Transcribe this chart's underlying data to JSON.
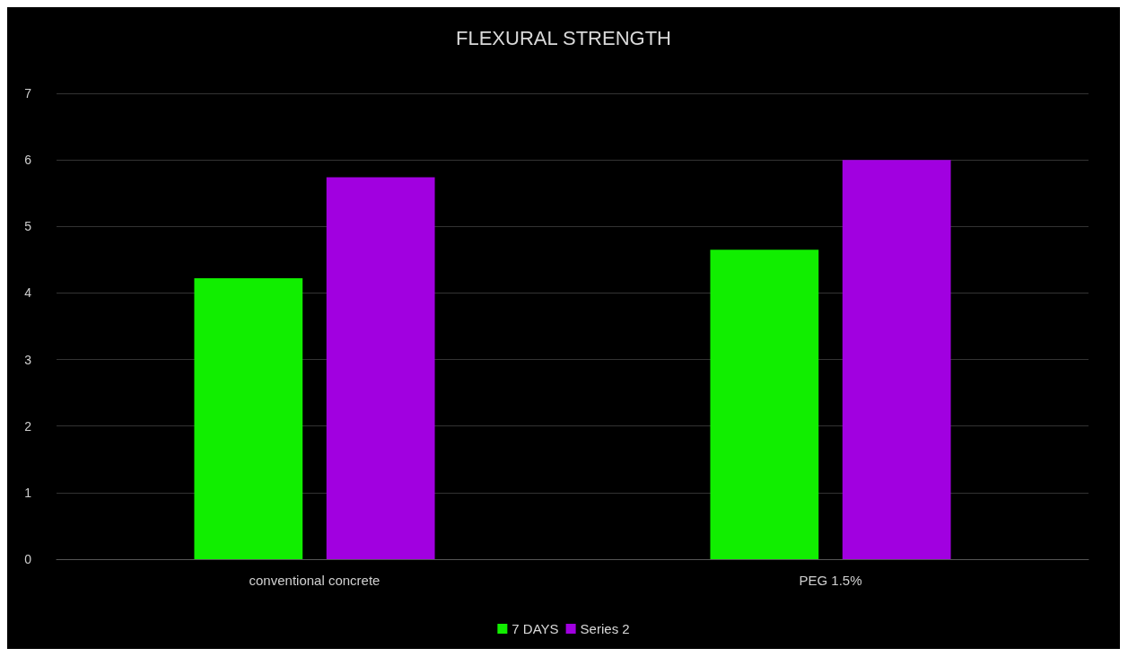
{
  "chart_data": {
    "type": "bar",
    "title": "FLEXURAL STRENGTH",
    "categories": [
      "conventional concrete",
      "PEG 1.5%"
    ],
    "series": [
      {
        "name": "7 DAYS",
        "color": "#11ee00",
        "values": [
          4.22,
          4.65
        ]
      },
      {
        "name": "Series 2",
        "color": "#a100e0",
        "values": [
          5.74,
          6.0
        ]
      }
    ],
    "ylim": [
      0,
      7
    ],
    "yticks": [
      0,
      1,
      2,
      3,
      4,
      5,
      6,
      7
    ],
    "grid": "y",
    "legend": "bottom"
  }
}
